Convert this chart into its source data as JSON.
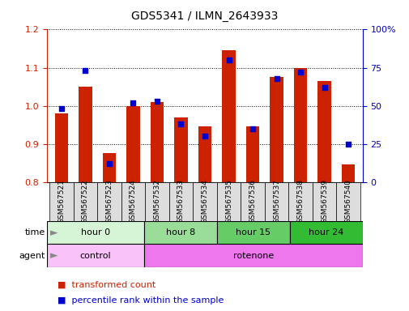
{
  "title": "GDS5341 / ILMN_2643933",
  "samples": [
    "GSM567521",
    "GSM567522",
    "GSM567523",
    "GSM567524",
    "GSM567532",
    "GSM567533",
    "GSM567534",
    "GSM567535",
    "GSM567536",
    "GSM567537",
    "GSM567538",
    "GSM567539",
    "GSM567540"
  ],
  "transformed_count": [
    0.98,
    1.05,
    0.875,
    1.0,
    1.01,
    0.97,
    0.945,
    1.145,
    0.945,
    1.075,
    1.1,
    1.065,
    0.845
  ],
  "percentile_rank": [
    48,
    73,
    12,
    52,
    53,
    38,
    30,
    80,
    35,
    68,
    72,
    62,
    25
  ],
  "ylim_left": [
    0.8,
    1.2
  ],
  "ylim_right": [
    0,
    100
  ],
  "yticks_left": [
    0.8,
    0.9,
    1.0,
    1.1,
    1.2
  ],
  "yticks_right": [
    0,
    25,
    50,
    75,
    100
  ],
  "ytick_right_labels": [
    "0",
    "25",
    "50",
    "75",
    "100%"
  ],
  "groups": [
    {
      "label": "hour 0",
      "start": 0,
      "end": 4,
      "color": "#d6f5d6"
    },
    {
      "label": "hour 8",
      "start": 4,
      "end": 7,
      "color": "#99dd99"
    },
    {
      "label": "hour 15",
      "start": 7,
      "end": 10,
      "color": "#66cc66"
    },
    {
      "label": "hour 24",
      "start": 10,
      "end": 13,
      "color": "#33bb33"
    }
  ],
  "agents": [
    {
      "label": "control",
      "start": 0,
      "end": 4,
      "color": "#f9c3f9"
    },
    {
      "label": "rotenone",
      "start": 4,
      "end": 13,
      "color": "#ee77ee"
    }
  ],
  "bar_color": "#cc2200",
  "dot_color": "#0000cc",
  "bar_width": 0.55,
  "background_color": "#ffffff",
  "tick_label_color_left": "#cc2200",
  "tick_label_color_right": "#0000cc",
  "legend_items": [
    {
      "color": "#cc2200",
      "label": "transformed count"
    },
    {
      "color": "#0000cc",
      "label": "percentile rank within the sample"
    }
  ]
}
